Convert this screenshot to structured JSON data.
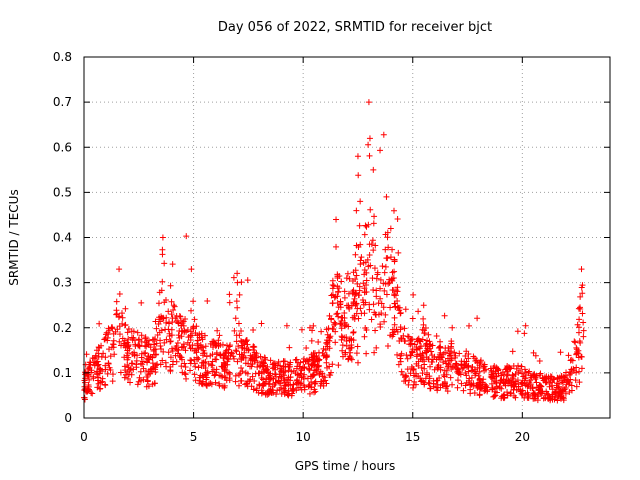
{
  "chart_data": {
    "type": "scatter",
    "title": "Day 056 of 2022, SRMTID for receiver bjct",
    "xlabel": "GPS time / hours",
    "ylabel": "SRMTID / TECUs",
    "xlim": [
      0,
      24
    ],
    "ylim": [
      0,
      0.8
    ],
    "xticks": [
      0,
      5,
      10,
      15,
      20
    ],
    "yticks": [
      0,
      0.1,
      0.2,
      0.3,
      0.4,
      0.5,
      0.6,
      0.7,
      0.8
    ],
    "xtick_labels": [
      "0",
      "5",
      "10",
      "15",
      "20"
    ],
    "ytick_labels": [
      "0",
      "0.1",
      "0.2",
      "0.3",
      "0.4",
      "0.5",
      "0.6",
      "0.7",
      "0.8"
    ],
    "grid": true,
    "marker": "+",
    "color": "#ff0000",
    "series": [
      {
        "name": "bjct",
        "envelope_x": [
          0,
          0.5,
          1.0,
          1.5,
          2.0,
          2.5,
          3.0,
          3.5,
          4.0,
          4.5,
          5.0,
          5.5,
          6.0,
          6.5,
          7.0,
          7.5,
          8.0,
          8.5,
          9.0,
          9.5,
          10.0,
          10.5,
          11.0,
          11.5,
          12.0,
          12.5,
          13.0,
          13.5,
          14.0,
          14.5,
          15.0,
          15.5,
          16.0,
          16.5,
          17.0,
          17.5,
          18.0,
          18.5,
          19.0,
          19.5,
          20.0,
          20.5,
          21.0,
          21.5,
          22.0,
          22.5,
          22.8
        ],
        "envelope_y": [
          0.07,
          0.1,
          0.13,
          0.16,
          0.14,
          0.13,
          0.12,
          0.16,
          0.18,
          0.16,
          0.14,
          0.13,
          0.12,
          0.12,
          0.13,
          0.12,
          0.1,
          0.09,
          0.09,
          0.09,
          0.09,
          0.1,
          0.13,
          0.2,
          0.22,
          0.2,
          0.25,
          0.24,
          0.3,
          0.15,
          0.12,
          0.13,
          0.11,
          0.11,
          0.1,
          0.1,
          0.09,
          0.08,
          0.08,
          0.08,
          0.08,
          0.07,
          0.07,
          0.06,
          0.07,
          0.12,
          0.17
        ],
        "peaks": [
          {
            "x": 1.6,
            "y": 0.33
          },
          {
            "x": 3.6,
            "y": 0.4
          },
          {
            "x": 4.9,
            "y": 0.33
          },
          {
            "x": 7.0,
            "y": 0.3
          },
          {
            "x": 12.5,
            "y": 0.58
          },
          {
            "x": 12.6,
            "y": 0.48
          },
          {
            "x": 13.0,
            "y": 0.7
          },
          {
            "x": 13.2,
            "y": 0.55
          },
          {
            "x": 13.8,
            "y": 0.49
          },
          {
            "x": 14.0,
            "y": 0.42
          },
          {
            "x": 11.5,
            "y": 0.44
          },
          {
            "x": 15.5,
            "y": 0.25
          },
          {
            "x": 16.8,
            "y": 0.2
          },
          {
            "x": 22.7,
            "y": 0.33
          }
        ]
      }
    ]
  }
}
